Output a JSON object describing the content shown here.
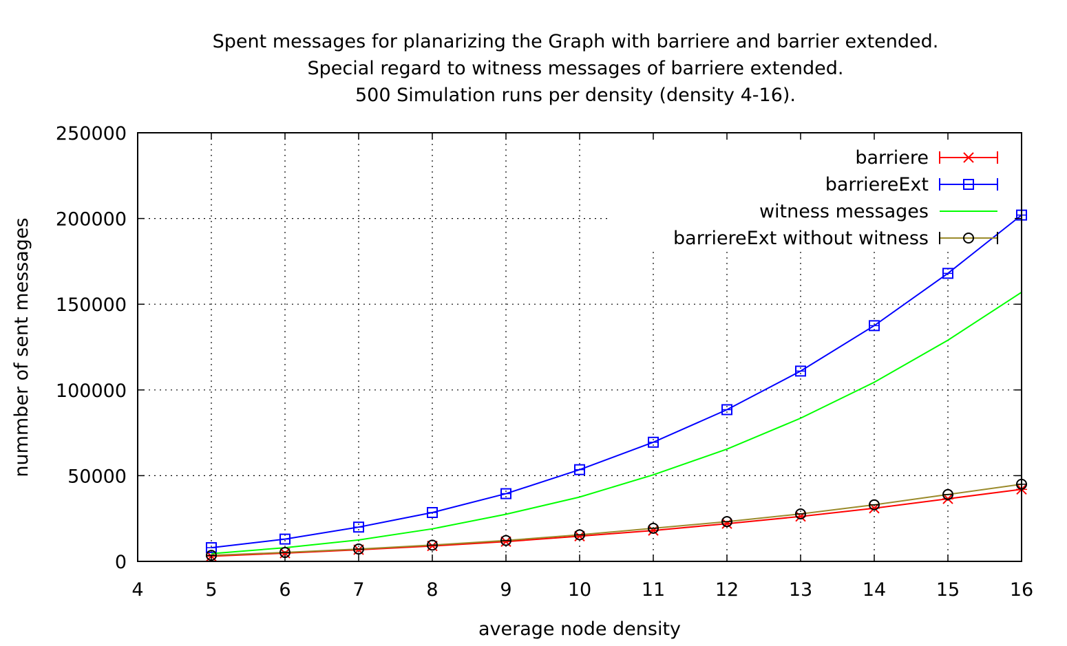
{
  "chart_data": {
    "type": "line",
    "title_lines": [
      "Spent messages for planarizing the Graph with barriere and barrier extended.",
      "Special regard to witness messages of barriere extended.",
      "500 Simulation runs per density (density 4-16)."
    ],
    "xlabel": "average node density",
    "ylabel": "nummber of sent messages",
    "xlim": [
      4,
      16
    ],
    "ylim": [
      0,
      250000
    ],
    "x_ticks": [
      "4",
      "5",
      "6",
      "7",
      "8",
      "9",
      "10",
      "11",
      "12",
      "13",
      "14",
      "15",
      "16"
    ],
    "y_ticks": [
      "0",
      "50000",
      "100000",
      "150000",
      "200000",
      "250000"
    ],
    "grid": true,
    "legend_position": "top-right",
    "x": [
      5,
      6,
      7,
      8,
      9,
      10,
      11,
      12,
      13,
      14,
      15,
      16
    ],
    "series": [
      {
        "name": "barriere",
        "color": "#ff0000",
        "marker": "x",
        "errorbars": true,
        "values": [
          3000,
          4800,
          6800,
          9000,
          11500,
          14700,
          18000,
          22000,
          26200,
          31000,
          36500,
          42000
        ]
      },
      {
        "name": "barriereExt",
        "color": "#0000ff",
        "marker": "square",
        "errorbars": true,
        "values": [
          8000,
          13000,
          20000,
          28500,
          39500,
          53500,
          69500,
          88500,
          111000,
          137500,
          168000,
          202000
        ]
      },
      {
        "name": "witness messages",
        "color": "#00ff00",
        "marker": "none",
        "errorbars": false,
        "values": [
          4500,
          8000,
          12500,
          19000,
          27500,
          37500,
          50500,
          65500,
          83500,
          104500,
          129000,
          157000
        ]
      },
      {
        "name": "barriereExt without witness",
        "color": "#9a8a2a",
        "marker_color": "#000000",
        "marker": "circle",
        "errorbars": true,
        "values": [
          3500,
          5200,
          7200,
          9500,
          12200,
          15500,
          19300,
          23200,
          27700,
          33000,
          39000,
          45000
        ]
      }
    ]
  }
}
